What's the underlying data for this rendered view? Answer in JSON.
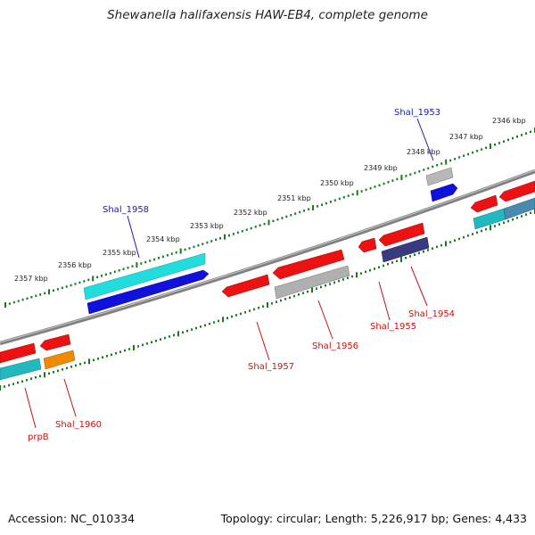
{
  "title": "Shewanella halifaxensis HAW-EB4, complete genome",
  "footer": {
    "accession": "Accession: NC_010334",
    "summary": "Topology: circular; Length: 5,226,917 bp; Genes: 4,433"
  },
  "tick_labels": [
    "2357 kbp",
    "2356 kbp",
    "2355 kbp",
    "2354 kbp",
    "2353 kbp",
    "2352 kbp",
    "2351 kbp",
    "2350 kbp",
    "2349 kbp",
    "2348 kbp",
    "2347 kbp",
    "2346 kbp"
  ],
  "gene_labels": [
    "Shal_1958",
    "Shal_1953",
    "Shal_1957",
    "Shal_1956",
    "Shal_1955",
    "Shal_1954",
    "prpB",
    "Shal_1960"
  ],
  "colors": {
    "backbone": "#808080",
    "ticks": "#1a7a1a",
    "forward_label": "#1a1aaa",
    "reverse_label": "#cc1111",
    "red": "#ee1111",
    "cyan": "#22dddd",
    "blue": "#1111dd",
    "gray": "#b0b0b0",
    "teal": "#22b8c0",
    "orange": "#f08a00",
    "purple": "#3a3a80"
  }
}
